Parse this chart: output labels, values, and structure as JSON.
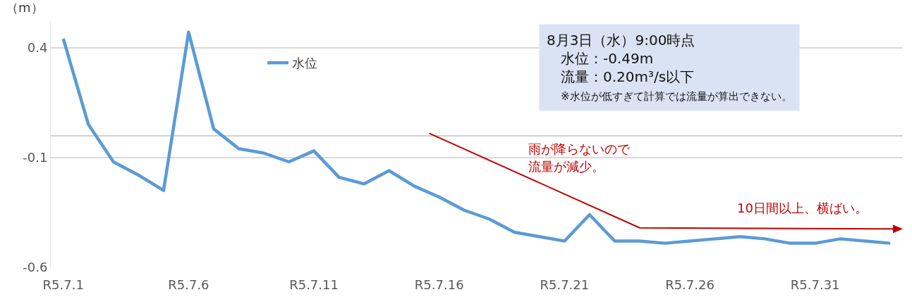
{
  "chart_data": {
    "type": "line",
    "ylabel": "（m）",
    "categories": [
      "R5.7.1",
      null,
      null,
      null,
      null,
      "R5.7.6",
      null,
      null,
      null,
      null,
      "R5.7.11",
      null,
      null,
      null,
      null,
      "R5.7.16",
      null,
      null,
      null,
      null,
      "R5.7.21",
      null,
      null,
      null,
      null,
      "R5.7.26",
      null,
      null,
      null,
      null,
      "R5.7.31",
      null,
      null,
      null
    ],
    "series": [
      {
        "name": "水位",
        "color": "#5b9bd5",
        "values": [
          0.44,
          0.05,
          -0.12,
          -0.18,
          -0.25,
          0.47,
          0.03,
          -0.06,
          -0.08,
          -0.12,
          -0.07,
          -0.19,
          -0.22,
          -0.16,
          -0.23,
          -0.28,
          -0.34,
          -0.38,
          -0.44,
          -0.46,
          -0.48,
          -0.36,
          -0.48,
          -0.48,
          -0.49,
          -0.48,
          -0.47,
          -0.46,
          -0.47,
          -0.49,
          -0.49,
          -0.47,
          -0.48,
          -0.49
        ]
      }
    ],
    "ylim": [
      -0.6,
      0.52
    ],
    "yticks": [
      -0.6,
      -0.1,
      0.4
    ],
    "grid": "y",
    "legend": "top left",
    "marker": "none",
    "line_style": "solid",
    "annotations": [
      "8月3日（水）9:00時点",
      "水位：-0.49m",
      "流量：0.20m³/s以下",
      "※水位が低すぎて計算では流量が算出できない。",
      "雨が降らないので",
      "流量が減少。",
      "10日間以上、横ばい。"
    ]
  }
}
